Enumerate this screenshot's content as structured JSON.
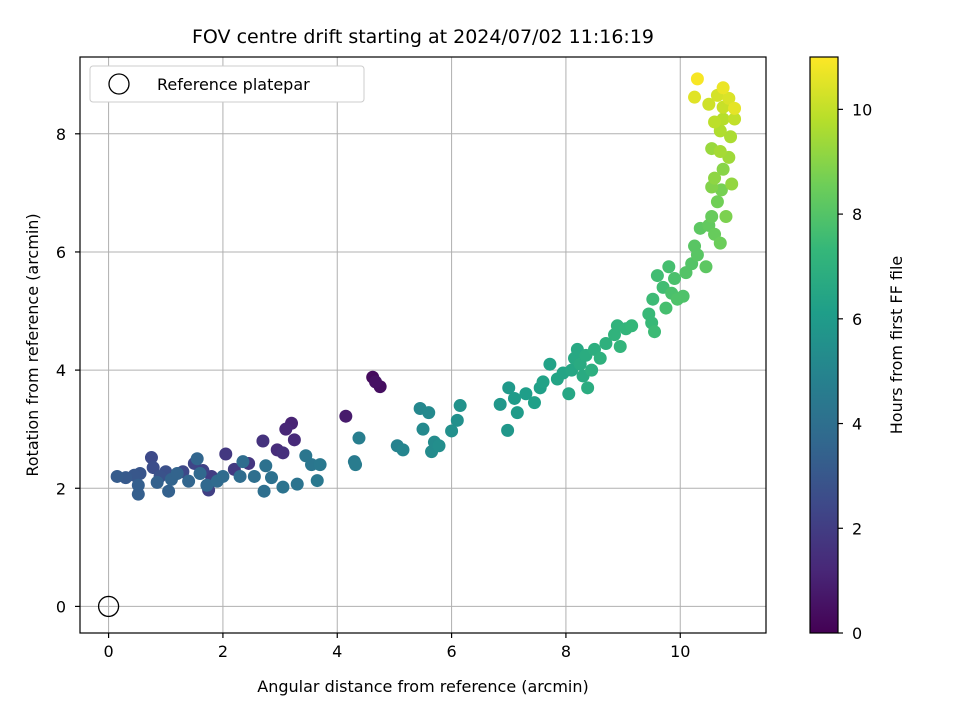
{
  "chart_data": {
    "type": "scatter",
    "title": "FOV centre drift starting at 2024/07/02 11:16:19",
    "xlabel": "Angular distance from reference (arcmin)",
    "ylabel": "Rotation from reference (arcmin)",
    "xlim": [
      -0.5,
      11.5
    ],
    "ylim": [
      -0.45,
      9.3
    ],
    "xticks": [
      0,
      2,
      4,
      6,
      8,
      10
    ],
    "yticks": [
      0,
      2,
      4,
      6,
      8
    ],
    "grid": true,
    "legend": {
      "placement": "top-left",
      "entries": [
        "Reference platepar"
      ]
    },
    "reference_point": {
      "x": 0,
      "y": 0,
      "label": "Reference platepar"
    },
    "colorbar": {
      "label": "Hours from first FF file",
      "range": [
        0,
        11
      ],
      "ticks": [
        0,
        2,
        4,
        6,
        8,
        10
      ],
      "colormap": "viridis"
    },
    "points": [
      {
        "x": 4.62,
        "y": 3.88,
        "h": 0.3
      },
      {
        "x": 4.75,
        "y": 3.72,
        "h": 0.4
      },
      {
        "x": 4.67,
        "y": 3.8,
        "h": 0.5
      },
      {
        "x": 4.15,
        "y": 3.22,
        "h": 0.8
      },
      {
        "x": 3.2,
        "y": 3.1,
        "h": 1.1
      },
      {
        "x": 3.1,
        "y": 3.0,
        "h": 1.2
      },
      {
        "x": 3.25,
        "y": 2.82,
        "h": 1.3
      },
      {
        "x": 2.95,
        "y": 2.65,
        "h": 1.4
      },
      {
        "x": 3.05,
        "y": 2.6,
        "h": 1.5
      },
      {
        "x": 2.7,
        "y": 2.8,
        "h": 1.6
      },
      {
        "x": 2.45,
        "y": 2.42,
        "h": 1.7
      },
      {
        "x": 2.05,
        "y": 2.58,
        "h": 1.8
      },
      {
        "x": 2.2,
        "y": 2.32,
        "h": 1.9
      },
      {
        "x": 1.8,
        "y": 2.2,
        "h": 2.0
      },
      {
        "x": 1.75,
        "y": 1.97,
        "h": 2.1
      },
      {
        "x": 1.65,
        "y": 2.3,
        "h": 2.2
      },
      {
        "x": 1.5,
        "y": 2.42,
        "h": 2.3
      },
      {
        "x": 1.3,
        "y": 2.28,
        "h": 2.4
      },
      {
        "x": 0.75,
        "y": 2.52,
        "h": 2.5
      },
      {
        "x": 0.78,
        "y": 2.35,
        "h": 2.6
      },
      {
        "x": 1.0,
        "y": 2.28,
        "h": 2.7
      },
      {
        "x": 0.9,
        "y": 2.2,
        "h": 2.8
      },
      {
        "x": 0.55,
        "y": 2.25,
        "h": 2.9
      },
      {
        "x": 0.45,
        "y": 2.22,
        "h": 3.0
      },
      {
        "x": 0.3,
        "y": 2.18,
        "h": 3.1
      },
      {
        "x": 0.15,
        "y": 2.2,
        "h": 3.2
      },
      {
        "x": 0.52,
        "y": 1.9,
        "h": 3.3
      },
      {
        "x": 0.52,
        "y": 2.05,
        "h": 3.3
      },
      {
        "x": 0.85,
        "y": 2.1,
        "h": 3.4
      },
      {
        "x": 1.05,
        "y": 1.95,
        "h": 3.4
      },
      {
        "x": 1.1,
        "y": 2.15,
        "h": 3.5
      },
      {
        "x": 1.2,
        "y": 2.25,
        "h": 3.5
      },
      {
        "x": 1.4,
        "y": 2.12,
        "h": 3.6
      },
      {
        "x": 1.55,
        "y": 2.5,
        "h": 3.6
      },
      {
        "x": 1.6,
        "y": 2.25,
        "h": 3.7
      },
      {
        "x": 1.72,
        "y": 2.05,
        "h": 3.7
      },
      {
        "x": 1.9,
        "y": 2.12,
        "h": 3.8
      },
      {
        "x": 2.0,
        "y": 2.2,
        "h": 3.8
      },
      {
        "x": 2.3,
        "y": 2.2,
        "h": 3.9
      },
      {
        "x": 2.35,
        "y": 2.45,
        "h": 3.9
      },
      {
        "x": 2.55,
        "y": 2.2,
        "h": 4.0
      },
      {
        "x": 2.72,
        "y": 1.95,
        "h": 4.0
      },
      {
        "x": 2.75,
        "y": 2.38,
        "h": 4.1
      },
      {
        "x": 2.85,
        "y": 2.18,
        "h": 4.1
      },
      {
        "x": 3.05,
        "y": 2.02,
        "h": 4.2
      },
      {
        "x": 3.3,
        "y": 2.07,
        "h": 4.2
      },
      {
        "x": 3.45,
        "y": 2.55,
        "h": 4.3
      },
      {
        "x": 3.55,
        "y": 2.4,
        "h": 4.3
      },
      {
        "x": 3.7,
        "y": 2.4,
        "h": 4.4
      },
      {
        "x": 3.65,
        "y": 2.13,
        "h": 4.4
      },
      {
        "x": 4.3,
        "y": 2.45,
        "h": 4.5
      },
      {
        "x": 4.32,
        "y": 2.4,
        "h": 4.6
      },
      {
        "x": 4.38,
        "y": 2.85,
        "h": 4.7
      },
      {
        "x": 5.05,
        "y": 2.72,
        "h": 4.9
      },
      {
        "x": 5.15,
        "y": 2.65,
        "h": 5.0
      },
      {
        "x": 5.45,
        "y": 3.35,
        "h": 5.1
      },
      {
        "x": 5.5,
        "y": 3.0,
        "h": 5.2
      },
      {
        "x": 5.6,
        "y": 3.28,
        "h": 5.2
      },
      {
        "x": 5.65,
        "y": 2.62,
        "h": 5.3
      },
      {
        "x": 5.7,
        "y": 2.78,
        "h": 5.3
      },
      {
        "x": 5.78,
        "y": 2.72,
        "h": 5.4
      },
      {
        "x": 6.0,
        "y": 2.97,
        "h": 5.5
      },
      {
        "x": 6.1,
        "y": 3.15,
        "h": 5.5
      },
      {
        "x": 6.15,
        "y": 3.4,
        "h": 5.6
      },
      {
        "x": 6.85,
        "y": 3.42,
        "h": 5.8
      },
      {
        "x": 6.98,
        "y": 2.98,
        "h": 5.8
      },
      {
        "x": 7.0,
        "y": 3.7,
        "h": 5.9
      },
      {
        "x": 7.1,
        "y": 3.52,
        "h": 6.0
      },
      {
        "x": 7.15,
        "y": 3.28,
        "h": 6.0
      },
      {
        "x": 7.3,
        "y": 3.6,
        "h": 6.1
      },
      {
        "x": 7.45,
        "y": 3.45,
        "h": 6.2
      },
      {
        "x": 7.55,
        "y": 3.7,
        "h": 6.2
      },
      {
        "x": 7.6,
        "y": 3.8,
        "h": 6.3
      },
      {
        "x": 7.72,
        "y": 4.1,
        "h": 6.3
      },
      {
        "x": 7.85,
        "y": 3.85,
        "h": 6.4
      },
      {
        "x": 7.95,
        "y": 3.95,
        "h": 6.4
      },
      {
        "x": 8.05,
        "y": 3.6,
        "h": 6.5
      },
      {
        "x": 8.1,
        "y": 4.0,
        "h": 6.5
      },
      {
        "x": 8.15,
        "y": 4.2,
        "h": 6.6
      },
      {
        "x": 8.2,
        "y": 4.35,
        "h": 6.6
      },
      {
        "x": 8.25,
        "y": 4.1,
        "h": 6.7
      },
      {
        "x": 8.3,
        "y": 3.9,
        "h": 6.7
      },
      {
        "x": 8.35,
        "y": 4.25,
        "h": 6.8
      },
      {
        "x": 8.38,
        "y": 3.7,
        "h": 6.8
      },
      {
        "x": 8.45,
        "y": 4.0,
        "h": 6.9
      },
      {
        "x": 8.5,
        "y": 4.35,
        "h": 6.9
      },
      {
        "x": 8.6,
        "y": 4.2,
        "h": 7.0
      },
      {
        "x": 8.7,
        "y": 4.45,
        "h": 7.0
      },
      {
        "x": 8.85,
        "y": 4.6,
        "h": 7.1
      },
      {
        "x": 8.9,
        "y": 4.75,
        "h": 7.1
      },
      {
        "x": 8.95,
        "y": 4.4,
        "h": 7.2
      },
      {
        "x": 9.05,
        "y": 4.7,
        "h": 7.2
      },
      {
        "x": 9.15,
        "y": 4.75,
        "h": 7.3
      },
      {
        "x": 9.45,
        "y": 4.95,
        "h": 7.4
      },
      {
        "x": 9.5,
        "y": 4.8,
        "h": 7.4
      },
      {
        "x": 9.55,
        "y": 4.65,
        "h": 7.5
      },
      {
        "x": 9.52,
        "y": 5.2,
        "h": 7.5
      },
      {
        "x": 9.6,
        "y": 5.6,
        "h": 7.6
      },
      {
        "x": 9.7,
        "y": 5.4,
        "h": 7.6
      },
      {
        "x": 9.75,
        "y": 5.05,
        "h": 7.7
      },
      {
        "x": 9.8,
        "y": 5.75,
        "h": 7.7
      },
      {
        "x": 9.85,
        "y": 5.3,
        "h": 7.8
      },
      {
        "x": 9.9,
        "y": 5.55,
        "h": 7.8
      },
      {
        "x": 9.95,
        "y": 5.2,
        "h": 7.9
      },
      {
        "x": 10.05,
        "y": 5.25,
        "h": 7.9
      },
      {
        "x": 10.1,
        "y": 5.65,
        "h": 8.0
      },
      {
        "x": 10.2,
        "y": 5.8,
        "h": 8.0
      },
      {
        "x": 10.25,
        "y": 6.1,
        "h": 8.1
      },
      {
        "x": 10.3,
        "y": 5.95,
        "h": 8.1
      },
      {
        "x": 10.35,
        "y": 6.4,
        "h": 8.2
      },
      {
        "x": 10.45,
        "y": 5.75,
        "h": 8.2
      },
      {
        "x": 10.5,
        "y": 6.45,
        "h": 8.3
      },
      {
        "x": 10.55,
        "y": 6.6,
        "h": 8.4
      },
      {
        "x": 10.6,
        "y": 6.3,
        "h": 8.4
      },
      {
        "x": 10.7,
        "y": 6.15,
        "h": 8.5
      },
      {
        "x": 10.65,
        "y": 6.85,
        "h": 8.6
      },
      {
        "x": 10.72,
        "y": 7.05,
        "h": 8.7
      },
      {
        "x": 10.8,
        "y": 6.6,
        "h": 8.8
      },
      {
        "x": 10.55,
        "y": 7.1,
        "h": 8.9
      },
      {
        "x": 10.75,
        "y": 7.4,
        "h": 9.0
      },
      {
        "x": 10.6,
        "y": 7.25,
        "h": 9.1
      },
      {
        "x": 10.9,
        "y": 7.15,
        "h": 9.2
      },
      {
        "x": 10.55,
        "y": 7.75,
        "h": 9.3
      },
      {
        "x": 10.85,
        "y": 7.6,
        "h": 9.4
      },
      {
        "x": 10.7,
        "y": 7.7,
        "h": 9.5
      },
      {
        "x": 10.88,
        "y": 7.95,
        "h": 9.6
      },
      {
        "x": 10.7,
        "y": 8.05,
        "h": 9.7
      },
      {
        "x": 10.75,
        "y": 8.25,
        "h": 9.8
      },
      {
        "x": 10.6,
        "y": 8.2,
        "h": 9.9
      },
      {
        "x": 10.95,
        "y": 8.25,
        "h": 10.0
      },
      {
        "x": 10.75,
        "y": 8.45,
        "h": 10.1
      },
      {
        "x": 10.5,
        "y": 8.5,
        "h": 10.2
      },
      {
        "x": 10.65,
        "y": 8.65,
        "h": 10.3
      },
      {
        "x": 10.85,
        "y": 8.6,
        "h": 10.4
      },
      {
        "x": 10.25,
        "y": 8.62,
        "h": 10.5
      },
      {
        "x": 10.95,
        "y": 8.43,
        "h": 10.6
      },
      {
        "x": 10.75,
        "y": 8.78,
        "h": 10.7
      },
      {
        "x": 10.3,
        "y": 8.93,
        "h": 10.9
      }
    ]
  }
}
